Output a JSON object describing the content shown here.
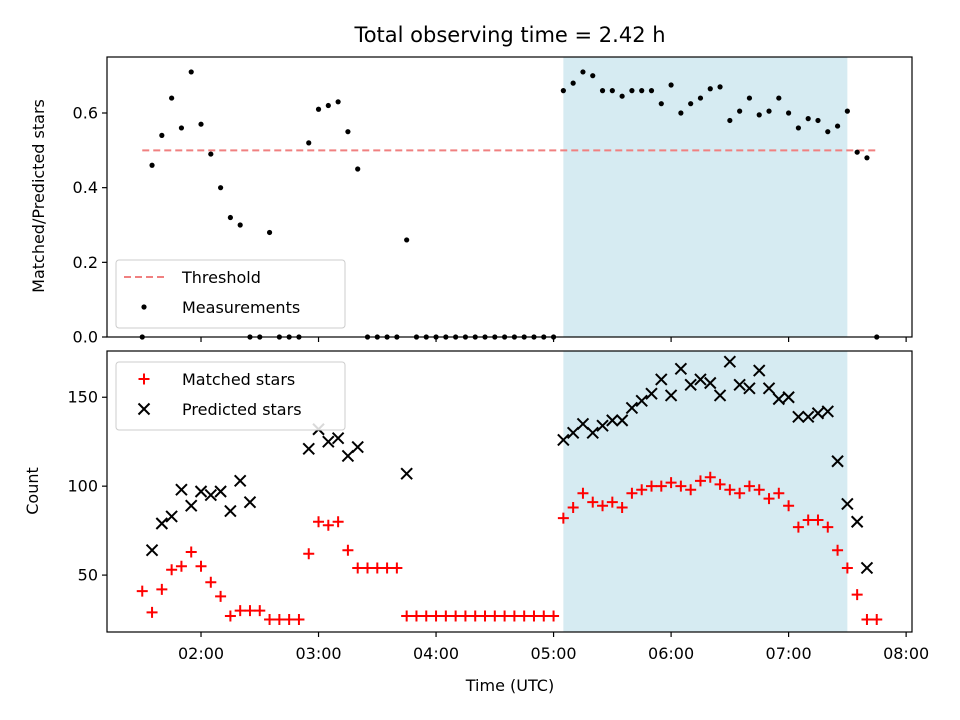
{
  "colors": {
    "background": "#ffffff",
    "span": "#add8e6",
    "threshold": "#f08080",
    "measurement": "#000000",
    "matched": "#ff0000",
    "predicted": "#000000"
  },
  "chart_data": [
    {
      "type": "scatter",
      "title": "Total observing time = 2.42 h",
      "xlabel": "",
      "ylabel": "Matched/Predicted stars",
      "xlim": [
        "01:12",
        "08:03"
      ],
      "ylim": [
        0,
        0.75
      ],
      "yticks": [
        0.0,
        0.2,
        0.4,
        0.6
      ],
      "ytick_labels": [
        "0.0",
        "0.2",
        "0.4",
        "0.6"
      ],
      "grid": false,
      "legend_position": "lower-left",
      "legend": [
        "Threshold",
        "Measurements"
      ],
      "span": [
        "05:05",
        "07:30"
      ],
      "threshold": {
        "name": "Threshold",
        "x": [
          "01:30",
          "07:45"
        ],
        "y": 0.5,
        "style": "dashed"
      },
      "series": [
        {
          "name": "Measurements",
          "marker": "dot",
          "x": [
            "01:30",
            "01:35",
            "01:40",
            "01:45",
            "01:50",
            "01:55",
            "02:00",
            "02:05",
            "02:10",
            "02:15",
            "02:20",
            "02:25",
            "02:30",
            "02:35",
            "02:40",
            "02:45",
            "02:50",
            "02:55",
            "03:00",
            "03:05",
            "03:10",
            "03:15",
            "03:20",
            "03:25",
            "03:30",
            "03:35",
            "03:40",
            "03:45",
            "03:50",
            "03:55",
            "04:00",
            "04:05",
            "04:10",
            "04:15",
            "04:20",
            "04:25",
            "04:30",
            "04:35",
            "04:40",
            "04:45",
            "04:50",
            "04:55",
            "05:00",
            "05:05",
            "05:10",
            "05:15",
            "05:20",
            "05:25",
            "05:30",
            "05:35",
            "05:40",
            "05:45",
            "05:50",
            "05:55",
            "06:00",
            "06:05",
            "06:10",
            "06:15",
            "06:20",
            "06:25",
            "06:30",
            "06:35",
            "06:40",
            "06:45",
            "06:50",
            "06:55",
            "07:00",
            "07:05",
            "07:10",
            "07:15",
            "07:20",
            "07:25",
            "07:30",
            "07:35",
            "07:40",
            "07:45"
          ],
          "y": [
            0.0,
            0.46,
            0.54,
            0.64,
            0.56,
            0.71,
            0.57,
            0.49,
            0.4,
            0.32,
            0.3,
            0.0,
            0.0,
            0.28,
            0.0,
            0.0,
            0.0,
            0.52,
            0.61,
            0.62,
            0.63,
            0.55,
            0.45,
            0.0,
            0.0,
            0.0,
            0.0,
            0.26,
            0.0,
            0.0,
            0.0,
            0.0,
            0.0,
            0.0,
            0.0,
            0.0,
            0.0,
            0.0,
            0.0,
            0.0,
            0.0,
            0.0,
            0.0,
            0.66,
            0.68,
            0.71,
            0.7,
            0.66,
            0.66,
            0.645,
            0.66,
            0.66,
            0.66,
            0.625,
            0.675,
            0.6,
            0.625,
            0.64,
            0.665,
            0.67,
            0.58,
            0.605,
            0.64,
            0.595,
            0.605,
            0.64,
            0.6,
            0.56,
            0.585,
            0.58,
            0.55,
            0.565,
            0.605,
            0.495,
            0.48,
            0.0
          ]
        }
      ]
    },
    {
      "type": "scatter",
      "title": "",
      "xlabel": "Time (UTC)",
      "ylabel": "Count",
      "xlim": [
        "01:12",
        "08:03"
      ],
      "ylim": [
        18,
        176
      ],
      "xticks": [
        "02:00",
        "03:00",
        "04:00",
        "05:00",
        "06:00",
        "07:00",
        "08:00"
      ],
      "yticks": [
        50,
        100,
        150
      ],
      "ytick_labels": [
        "50",
        "100",
        "150"
      ],
      "grid": false,
      "legend_position": "upper-left",
      "legend": [
        "Matched stars",
        "Predicted stars"
      ],
      "span": [
        "05:05",
        "07:30"
      ],
      "series": [
        {
          "name": "Matched stars",
          "marker": "plus",
          "x": [
            "01:30",
            "01:35",
            "01:40",
            "01:45",
            "01:50",
            "01:55",
            "02:00",
            "02:05",
            "02:10",
            "02:15",
            "02:20",
            "02:25",
            "02:30",
            "02:35",
            "02:40",
            "02:45",
            "02:50",
            "02:55",
            "03:00",
            "03:05",
            "03:10",
            "03:15",
            "03:20",
            "03:25",
            "03:30",
            "03:35",
            "03:40",
            "03:45",
            "03:50",
            "03:55",
            "04:00",
            "04:05",
            "04:10",
            "04:15",
            "04:20",
            "04:25",
            "04:30",
            "04:35",
            "04:40",
            "04:45",
            "04:50",
            "04:55",
            "05:00",
            "05:05",
            "05:10",
            "05:15",
            "05:20",
            "05:25",
            "05:30",
            "05:35",
            "05:40",
            "05:45",
            "05:50",
            "05:55",
            "06:00",
            "06:05",
            "06:10",
            "06:15",
            "06:20",
            "06:25",
            "06:30",
            "06:35",
            "06:40",
            "06:45",
            "06:50",
            "06:55",
            "07:00",
            "07:05",
            "07:10",
            "07:15",
            "07:20",
            "07:25",
            "07:30",
            "07:35",
            "07:40",
            "07:45"
          ],
          "y": [
            41,
            29,
            42,
            53,
            55,
            63,
            55,
            46,
            38,
            27,
            30,
            30,
            30,
            25,
            25,
            25,
            25,
            62,
            80,
            78,
            80,
            64,
            54,
            54,
            54,
            54,
            54,
            27,
            27,
            27,
            27,
            27,
            27,
            27,
            27,
            27,
            27,
            27,
            27,
            27,
            27,
            27,
            27,
            82,
            88,
            96,
            91,
            89,
            91,
            88,
            96,
            98,
            100,
            100,
            102,
            100,
            98,
            103,
            105,
            101,
            98,
            96,
            100,
            98,
            93,
            96,
            89,
            77,
            81,
            81,
            77,
            64,
            54,
            39,
            25,
            25
          ]
        },
        {
          "name": "Predicted stars",
          "marker": "x",
          "x": [
            "01:35",
            "01:40",
            "01:45",
            "01:50",
            "01:55",
            "02:00",
            "02:05",
            "02:10",
            "02:15",
            "02:20",
            "02:25",
            "02:55",
            "03:00",
            "03:05",
            "03:10",
            "03:15",
            "03:20",
            "03:45",
            "05:05",
            "05:10",
            "05:15",
            "05:20",
            "05:25",
            "05:30",
            "05:35",
            "05:40",
            "05:45",
            "05:50",
            "05:55",
            "06:00",
            "06:05",
            "06:10",
            "06:15",
            "06:20",
            "06:25",
            "06:30",
            "06:35",
            "06:40",
            "06:45",
            "06:50",
            "06:55",
            "07:00",
            "07:05",
            "07:10",
            "07:15",
            "07:20",
            "07:25",
            "07:30",
            "07:35",
            "07:40"
          ],
          "y": [
            64,
            79,
            83,
            98,
            89,
            97,
            95,
            97,
            86,
            103,
            91,
            121,
            132,
            125,
            127,
            117,
            122,
            107,
            126,
            130,
            135,
            130,
            134,
            137,
            137,
            144,
            148,
            152,
            160,
            151,
            166,
            157,
            160,
            158,
            151,
            170,
            157,
            155,
            165,
            155,
            149,
            150,
            139,
            139,
            141,
            142,
            114,
            90,
            80,
            54
          ]
        }
      ]
    }
  ]
}
